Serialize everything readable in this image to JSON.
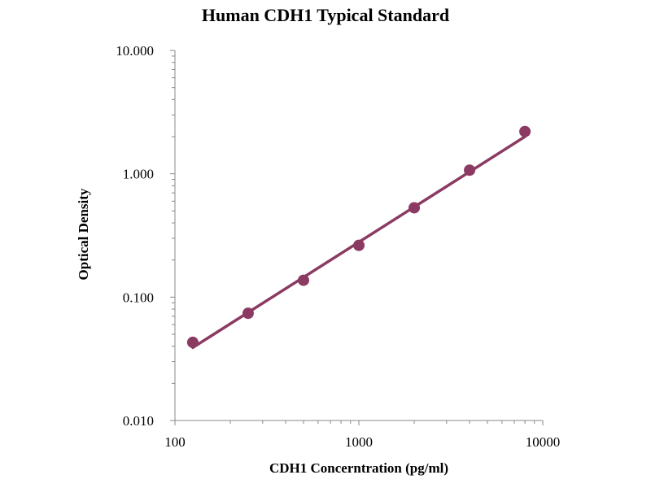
{
  "chart_data": {
    "type": "line",
    "title": "Human CDH1 Typical Standard",
    "xlabel": "CDH1 Concerntration (pg/ml)",
    "ylabel": "Optical Density",
    "x_scale": "log",
    "y_scale": "log",
    "xlim": [
      100,
      10000
    ],
    "ylim": [
      0.01,
      10
    ],
    "x_ticks": [
      {
        "value": 100,
        "label": "100"
      },
      {
        "value": 1000,
        "label": "1000"
      },
      {
        "value": 10000,
        "label": "10000"
      }
    ],
    "y_ticks": [
      {
        "value": 0.01,
        "label": "0.010"
      },
      {
        "value": 0.1,
        "label": "0.100"
      },
      {
        "value": 1,
        "label": "1.000"
      },
      {
        "value": 10,
        "label": "10.000"
      }
    ],
    "grid": false,
    "legend": "none",
    "series": [
      {
        "x": [
          125,
          250,
          500,
          1000,
          2000,
          4000,
          8000
        ],
        "y": [
          0.043,
          0.074,
          0.137,
          0.263,
          0.53,
          1.07,
          2.2
        ],
        "color": "#8B3A62",
        "marker": "circle"
      }
    ],
    "fit_line": {
      "x": [
        125,
        8000
      ],
      "y": [
        0.039,
        2.0
      ],
      "color": "#8B3A62"
    }
  }
}
